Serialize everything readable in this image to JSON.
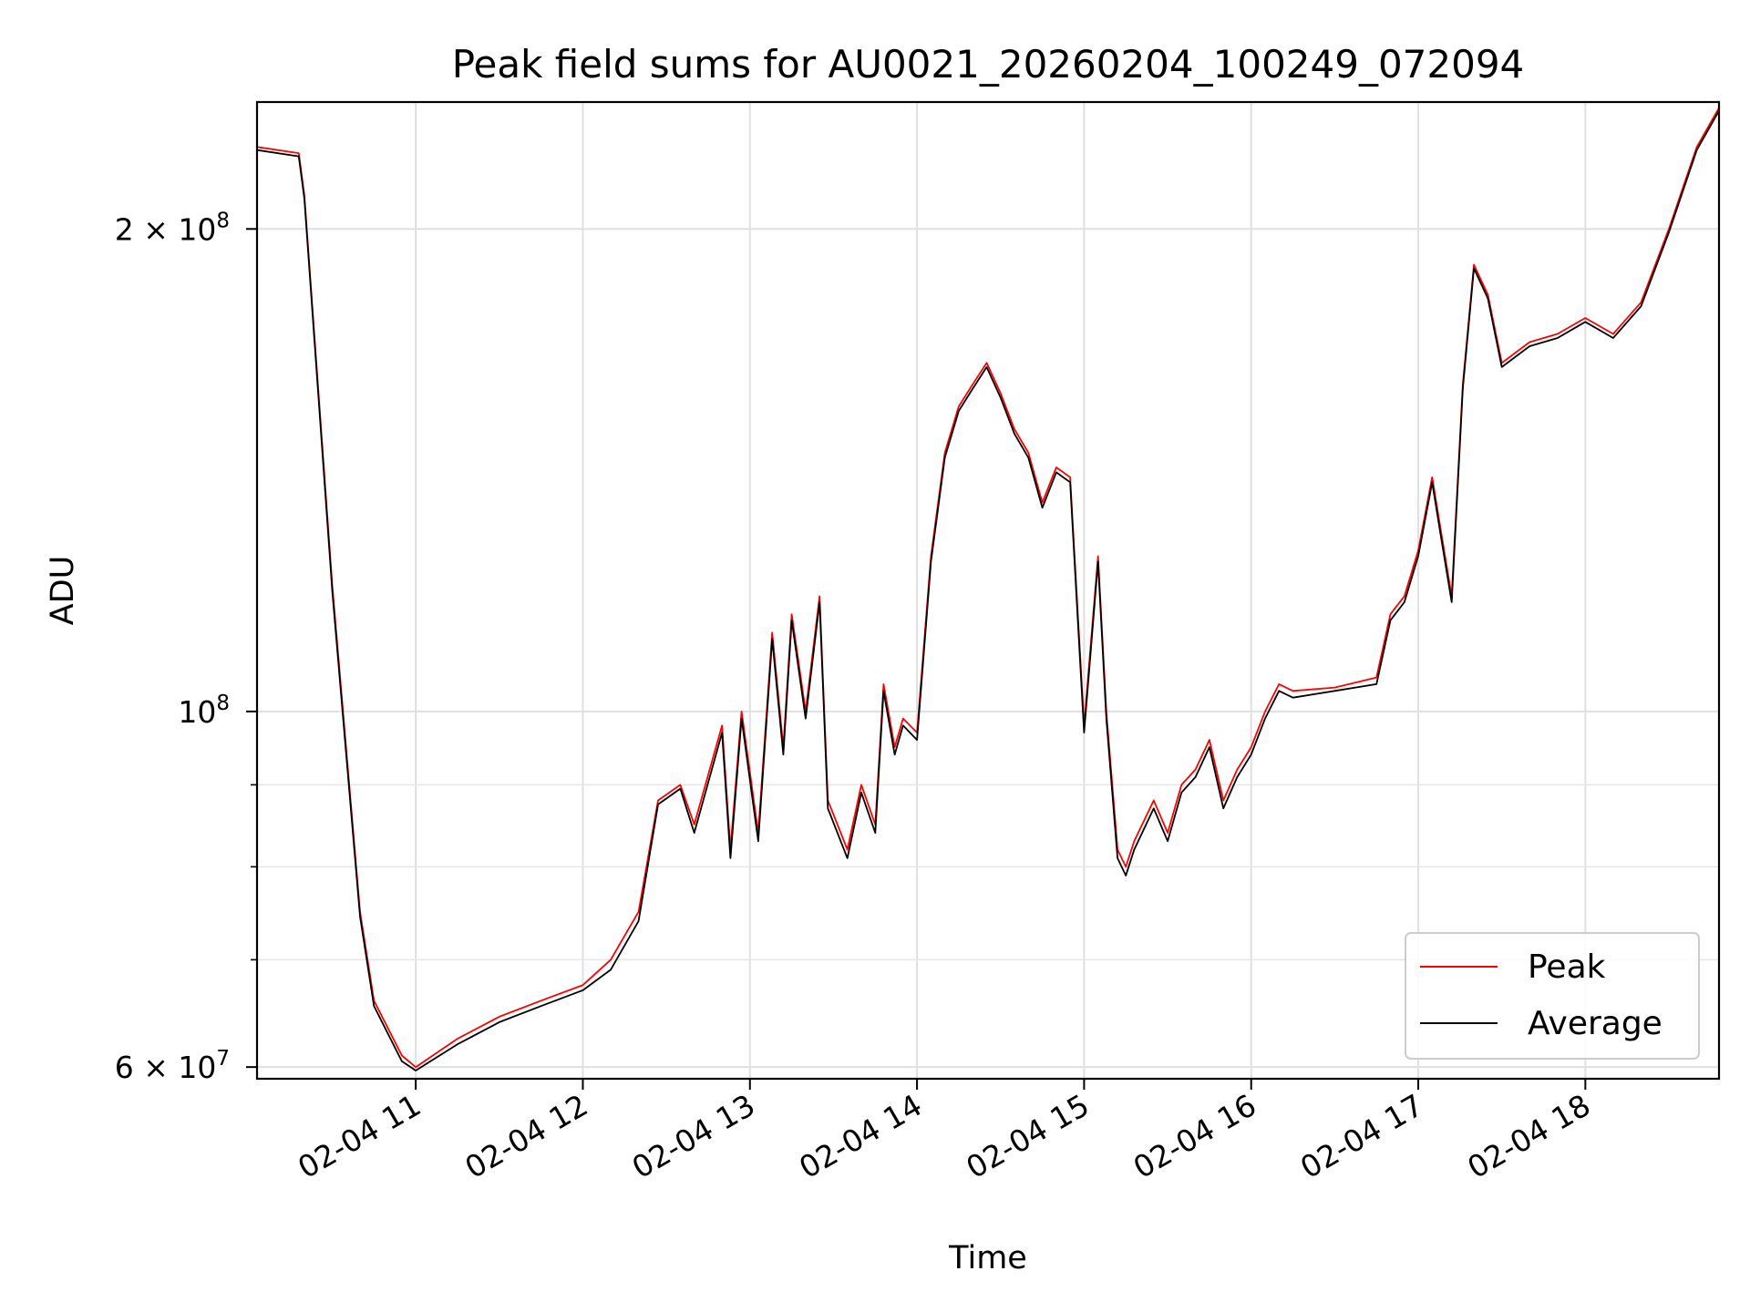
{
  "chart_data": {
    "type": "line",
    "title": "Peak field sums for AU0021_20260204_100249_072094",
    "xlabel": "Time",
    "ylabel": "ADU",
    "y_scale": "log",
    "ylim": [
      59000000,
      240000000
    ],
    "xlim": [
      "02-04 10:03",
      "02-04 18:48"
    ],
    "grid": true,
    "legend_position": "lower right",
    "x_ticks": [
      "02-04 11",
      "02-04 12",
      "02-04 13",
      "02-04 14",
      "02-04 15",
      "02-04 16",
      "02-04 17",
      "02-04 18"
    ],
    "y_ticks": [
      {
        "label_base": "6 × 10",
        "label_exp": "7",
        "value": 60000000
      },
      {
        "label_base": "10",
        "label_exp": "8",
        "value": 100000000
      },
      {
        "label_base": "2 × 10",
        "label_exp": "8",
        "value": 200000000
      }
    ],
    "y_minor_ticks": [
      70000000,
      80000000,
      90000000
    ],
    "x": [
      "02-04 10:03",
      "02-04 10:18",
      "02-04 10:20",
      "02-04 10:30",
      "02-04 10:40",
      "02-04 10:45",
      "02-04 10:55",
      "02-04 11:00",
      "02-04 11:15",
      "02-04 11:30",
      "02-04 11:45",
      "02-04 12:00",
      "02-04 12:10",
      "02-04 12:20",
      "02-04 12:27",
      "02-04 12:35",
      "02-04 12:40",
      "02-04 12:50",
      "02-04 12:53",
      "02-04 12:57",
      "02-04 13:03",
      "02-04 13:08",
      "02-04 13:12",
      "02-04 13:15",
      "02-04 13:20",
      "02-04 13:25",
      "02-04 13:28",
      "02-04 13:35",
      "02-04 13:40",
      "02-04 13:45",
      "02-04 13:48",
      "02-04 13:52",
      "02-04 13:55",
      "02-04 14:00",
      "02-04 14:05",
      "02-04 14:10",
      "02-04 14:15",
      "02-04 14:20",
      "02-04 14:25",
      "02-04 14:30",
      "02-04 14:35",
      "02-04 14:40",
      "02-04 14:45",
      "02-04 14:50",
      "02-04 14:55",
      "02-04 15:00",
      "02-04 15:05",
      "02-04 15:08",
      "02-04 15:12",
      "02-04 15:15",
      "02-04 15:18",
      "02-04 15:25",
      "02-04 15:30",
      "02-04 15:35",
      "02-04 15:40",
      "02-04 15:45",
      "02-04 15:50",
      "02-04 15:55",
      "02-04 16:00",
      "02-04 16:05",
      "02-04 16:10",
      "02-04 16:15",
      "02-04 16:30",
      "02-04 16:45",
      "02-04 16:50",
      "02-04 16:55",
      "02-04 17:00",
      "02-04 17:05",
      "02-04 17:08",
      "02-04 17:12",
      "02-04 17:16",
      "02-04 17:20",
      "02-04 17:25",
      "02-04 17:30",
      "02-04 17:40",
      "02-04 17:50",
      "02-04 18:00",
      "02-04 18:10",
      "02-04 18:20",
      "02-04 18:30",
      "02-04 18:40",
      "02-04 18:48"
    ],
    "series": [
      {
        "name": "Peak",
        "color": "#ff0000",
        "values": [
          225000000,
          223000000,
          210000000,
          120000000,
          75000000,
          66000000,
          61000000,
          60000000,
          62500000,
          64500000,
          66000000,
          67500000,
          70000000,
          75000000,
          88000000,
          90000000,
          85000000,
          98000000,
          82000000,
          100000000,
          84000000,
          112000000,
          95000000,
          115000000,
          100000000,
          118000000,
          88000000,
          82000000,
          90000000,
          85000000,
          104000000,
          95000000,
          99000000,
          97000000,
          125000000,
          145000000,
          155000000,
          160000000,
          165000000,
          158000000,
          150000000,
          145000000,
          135000000,
          142000000,
          140000000,
          98000000,
          125000000,
          100000000,
          82000000,
          80000000,
          83000000,
          88000000,
          84000000,
          90000000,
          92000000,
          96000000,
          88000000,
          92000000,
          95000000,
          100000000,
          104000000,
          103000000,
          103500000,
          105000000,
          115000000,
          118000000,
          126000000,
          140000000,
          130000000,
          118000000,
          160000000,
          190000000,
          182000000,
          165000000,
          170000000,
          172000000,
          176000000,
          172000000,
          180000000,
          200000000,
          225000000,
          238000000
        ]
      },
      {
        "name": "Average",
        "color": "#000000",
        "values": [
          224000000,
          222000000,
          209000000,
          119000000,
          74500000,
          65500000,
          60500000,
          59700000,
          62000000,
          64000000,
          65500000,
          67000000,
          69000000,
          74000000,
          87500000,
          89500000,
          84000000,
          97000000,
          81000000,
          99000000,
          83000000,
          111000000,
          94000000,
          114000000,
          99000000,
          117000000,
          87000000,
          81000000,
          89000000,
          84000000,
          103000000,
          94000000,
          98000000,
          96000000,
          124000000,
          144000000,
          154000000,
          159000000,
          164000000,
          157000000,
          149000000,
          144000000,
          134000000,
          141000000,
          139000000,
          97000000,
          124000000,
          99000000,
          81000000,
          79000000,
          82000000,
          87000000,
          83000000,
          89000000,
          91000000,
          95000000,
          87000000,
          91000000,
          94000000,
          99000000,
          103000000,
          102000000,
          103000000,
          104000000,
          114000000,
          117000000,
          125000000,
          139000000,
          129000000,
          117000000,
          159000000,
          189000000,
          181000000,
          164000000,
          169000000,
          171000000,
          175000000,
          171000000,
          179000000,
          199000000,
          224000000,
          237000000
        ]
      }
    ]
  }
}
